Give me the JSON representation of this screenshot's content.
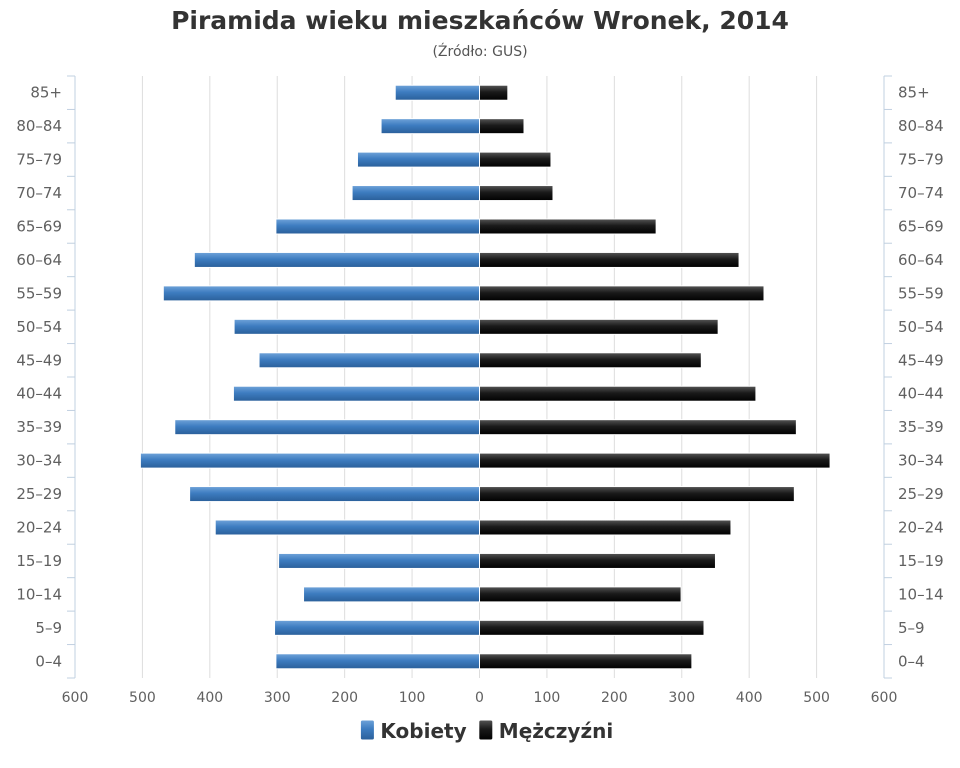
{
  "chart_data": {
    "type": "bar",
    "orientation": "horizontal",
    "title": "Piramida wieku mieszkańców Wronek, 2014",
    "subtitle": "(Źródło: GUS)",
    "categories": [
      "85+",
      "80–84",
      "75–79",
      "70–74",
      "65–69",
      "60–64",
      "55–59",
      "50–54",
      "45–49",
      "40–44",
      "35–39",
      "30–34",
      "25–29",
      "20–24",
      "15–19",
      "10–14",
      "5–9",
      "0–4"
    ],
    "series": [
      {
        "name": "Kobiety",
        "color": "#3d7cc0",
        "side": "left",
        "values": [
          125,
          146,
          181,
          189,
          302,
          423,
          469,
          364,
          327,
          365,
          452,
          503,
          430,
          392,
          298,
          261,
          304,
          302
        ]
      },
      {
        "name": "Mężczyźni",
        "color": "#1a1a1a",
        "side": "right",
        "values": [
          42,
          66,
          106,
          109,
          262,
          385,
          422,
          354,
          329,
          410,
          470,
          520,
          467,
          373,
          350,
          299,
          333,
          315
        ]
      }
    ],
    "xlim": [
      -600,
      600
    ],
    "xticks": [
      "600",
      "500",
      "400",
      "300",
      "200",
      "100",
      "0",
      "100",
      "200",
      "300",
      "400",
      "500",
      "600"
    ],
    "grid": true,
    "legend": "bottom"
  }
}
